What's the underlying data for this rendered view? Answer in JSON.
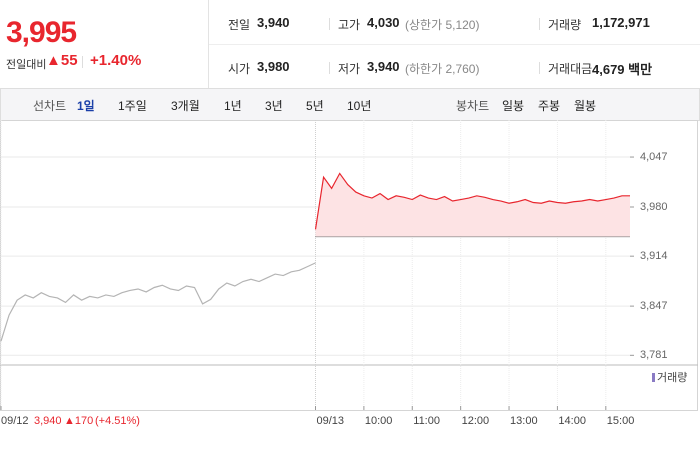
{
  "quote": {
    "price": "3,995",
    "change_label": "전일대비",
    "change": "▲55",
    "change_pct": "+1.40%"
  },
  "stats": {
    "rows": [
      [
        {
          "label": "전일",
          "value": "3,940"
        },
        {
          "label": "고가",
          "value": "4,030",
          "note": "(상한가 5,120)"
        },
        {
          "label": "거래량",
          "value": "1,172,971"
        }
      ],
      [
        {
          "label": "시가",
          "value": "3,980"
        },
        {
          "label": "저가",
          "value": "3,940",
          "note": "(하한가 2,760)"
        },
        {
          "label": "거래대금",
          "value": "4,679 백만"
        }
      ]
    ]
  },
  "tabs": {
    "line_label": "선차트",
    "line": [
      "1일",
      "1주일",
      "3개월",
      "1년",
      "3년",
      "5년",
      "10년"
    ],
    "selected": 0,
    "candle_label": "봉차트",
    "candle": [
      "일봉",
      "주봉",
      "월봉"
    ]
  },
  "chart_data": {
    "type": "line",
    "series": [
      {
        "color": "#b4b4b4",
        "x": [
          0,
          10,
          20,
          30,
          40,
          50,
          60,
          70,
          80,
          90,
          100,
          110,
          120,
          130,
          140,
          150,
          160,
          170,
          180,
          190,
          200,
          210,
          220,
          230,
          240,
          250,
          260,
          270,
          280,
          290,
          300,
          310,
          320,
          330,
          340,
          350,
          360,
          370,
          380,
          390
        ],
        "values": [
          3800,
          3835,
          3855,
          3862,
          3858,
          3865,
          3860,
          3858,
          3852,
          3862,
          3855,
          3860,
          3858,
          3862,
          3860,
          3865,
          3868,
          3870,
          3866,
          3872,
          3875,
          3870,
          3868,
          3874,
          3872,
          3850,
          3856,
          3870,
          3878,
          3874,
          3880,
          3883,
          3880,
          3885,
          3890,
          3888,
          3893,
          3895,
          3900,
          3905
        ]
      },
      {
        "color": "#e8262e",
        "x": [
          390,
          400,
          410,
          420,
          430,
          440,
          450,
          460,
          470,
          480,
          490,
          500,
          510,
          520,
          530,
          540,
          550,
          560,
          570,
          580,
          590,
          600,
          610,
          620,
          630,
          640,
          650,
          660,
          670,
          680,
          690,
          700,
          710,
          720,
          730,
          740,
          750,
          760,
          770,
          780
        ],
        "values": [
          3950,
          4020,
          4005,
          4025,
          4010,
          4000,
          3995,
          3992,
          3998,
          3990,
          3995,
          3993,
          3990,
          3996,
          3992,
          3990,
          3994,
          3988,
          3990,
          3992,
          3995,
          3993,
          3990,
          3988,
          3985,
          3987,
          3990,
          3986,
          3985,
          3988,
          3986,
          3985,
          3987,
          3988,
          3990,
          3988,
          3990,
          3992,
          3995,
          3995
        ],
        "fill": "#fde3e4"
      }
    ],
    "reference_line": 3940,
    "xlim": [
      0,
      780
    ],
    "ylim": [
      3768,
      4090
    ],
    "yticks": [
      {
        "value": 4047,
        "label": "4,047"
      },
      {
        "value": 3980,
        "label": "3,980"
      },
      {
        "value": 3914,
        "label": "3,914"
      },
      {
        "value": 3847,
        "label": "3,847"
      },
      {
        "value": 3781,
        "label": "3,781"
      }
    ],
    "xticks": [
      {
        "value": 0,
        "label": "09/12"
      },
      {
        "value": 390,
        "label": "09/13"
      },
      {
        "value": 450,
        "label": "10:00"
      },
      {
        "value": 510,
        "label": "11:00"
      },
      {
        "value": 570,
        "label": "12:00"
      },
      {
        "value": 630,
        "label": "13:00"
      },
      {
        "value": 690,
        "label": "14:00"
      },
      {
        "value": 750,
        "label": "15:00"
      }
    ],
    "grid": true,
    "volume_label": "거래량",
    "info": {
      "price": "3,940",
      "change": "▲170",
      "change_pct": "(+4.51%)"
    }
  }
}
